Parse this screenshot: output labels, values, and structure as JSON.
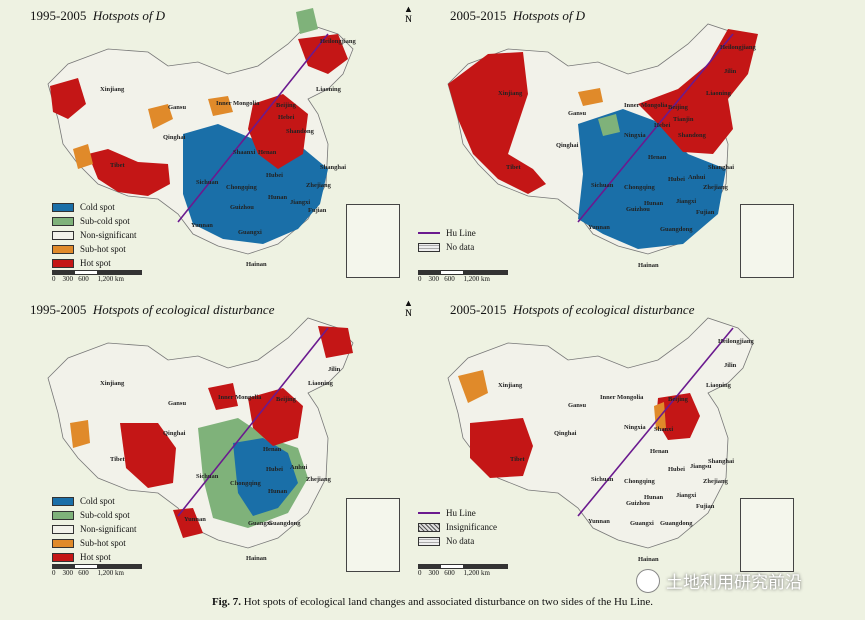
{
  "panels": [
    {
      "title_period": "1995-2005",
      "title_text": "Hotspots of D"
    },
    {
      "title_period": "2005-2015",
      "title_text": "Hotspots of D"
    },
    {
      "title_period": "1995-2005",
      "title_text": "Hotspots of ecological disturbance"
    },
    {
      "title_period": "2005-2015",
      "title_text": "Hotspots of ecological disturbance"
    }
  ],
  "north_label": "N",
  "legend_spots": [
    "Cold spot",
    "Sub-cold spot",
    "Non-significant",
    "Sub-hot spot",
    "Hot spot"
  ],
  "legend_colors": {
    "cold": "#1a6fa8",
    "subcold": "#7fb27a",
    "nonsig": "#f2f2ea",
    "subhot": "#e08a2a",
    "hot": "#c41616"
  },
  "legend_line": {
    "hu_line": "Hu Line",
    "no_data": "No data",
    "insignificance": "Insignificance"
  },
  "scale": {
    "ticks": [
      "0",
      "300",
      "600",
      "1,200 km"
    ]
  },
  "provinces": {
    "xinjiang": "Xinjiang",
    "tibet": "Tibet",
    "qinghai": "Qinghai",
    "gansu": "Gansu",
    "inner_mongolia": "Inner Mongolia",
    "heilongjiang": "Heilongjiang",
    "jilin": "Jilin",
    "liaoning": "Liaoning",
    "beijing": "Beijing",
    "tianjin": "Tianjin",
    "hebei": "Hebei",
    "shandong": "Shandong",
    "shanxi": "Shanxi",
    "shaanxi": "Shaanxi",
    "ningxia": "Ningxia",
    "henan": "Henan",
    "hubei": "Hubei",
    "anhui": "Anhui",
    "jiangsu": "Jiangsu",
    "shanghai": "Shanghai",
    "zhejiang": "Zhejiang",
    "sichuan": "Sichuan",
    "chongqing": "Chongqing",
    "hunan": "Hunan",
    "jiangxi": "Jiangxi",
    "fujian": "Fujian",
    "guizhou": "Guizhou",
    "yunnan": "Yunnan",
    "guangxi": "Guangxi",
    "guangdong": "Guangdong",
    "hainan": "Hainan"
  },
  "caption": {
    "label": "Fig. 7.",
    "text": "Hot spots of ecological land changes and associated disturbance on two sides of the Hu Line."
  },
  "watermark": "土地利用研究前沿"
}
